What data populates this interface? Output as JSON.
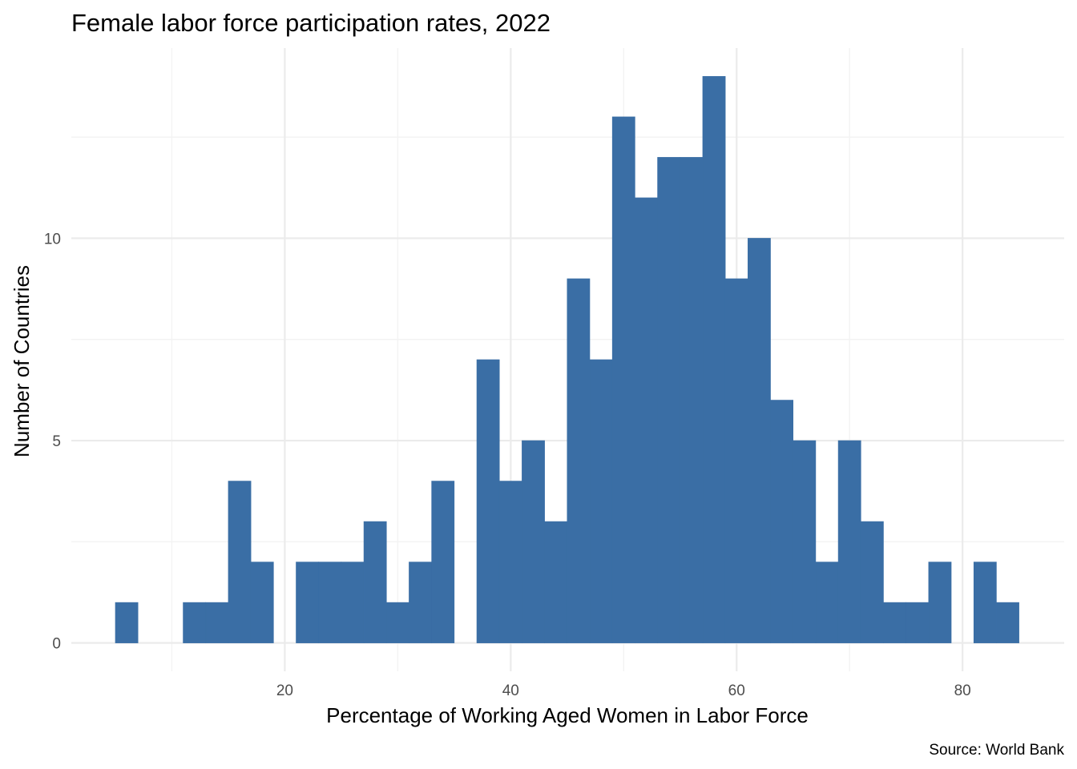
{
  "chart_data": {
    "type": "bar",
    "title": "Female labor force participation rates, 2022",
    "xlabel": "Percentage of Working Aged Women in Labor Force",
    "ylabel": "Number of Countries",
    "caption": "Source: World Bank",
    "bin_width": 2,
    "x": [
      6,
      8,
      10,
      12,
      14,
      16,
      18,
      20,
      22,
      24,
      26,
      28,
      30,
      32,
      34,
      36,
      38,
      40,
      42,
      44,
      46,
      48,
      50,
      52,
      54,
      56,
      58,
      60,
      62,
      64,
      66,
      68,
      70,
      72,
      74,
      76,
      78,
      80,
      82,
      84
    ],
    "values": [
      1,
      0,
      0,
      1,
      1,
      4,
      2,
      0,
      2,
      2,
      2,
      3,
      1,
      2,
      4,
      0,
      7,
      4,
      5,
      3,
      9,
      7,
      13,
      11,
      12,
      12,
      14,
      9,
      10,
      6,
      5,
      2,
      5,
      3,
      1,
      1,
      2,
      0,
      2,
      1
    ],
    "xlim": [
      1.1,
      89
    ],
    "ylim": [
      -0.7,
      14.7
    ],
    "x_ticks": [
      20,
      40,
      60,
      80
    ],
    "y_ticks": [
      0,
      5,
      10
    ],
    "x_tick_labels": [
      "20",
      "40",
      "60",
      "80"
    ],
    "y_tick_labels": [
      "0",
      "5",
      "10"
    ],
    "bar_color": "#3a6ea5",
    "grid": true,
    "grid_major_color": "#ebebeb",
    "theme": "minimal"
  }
}
